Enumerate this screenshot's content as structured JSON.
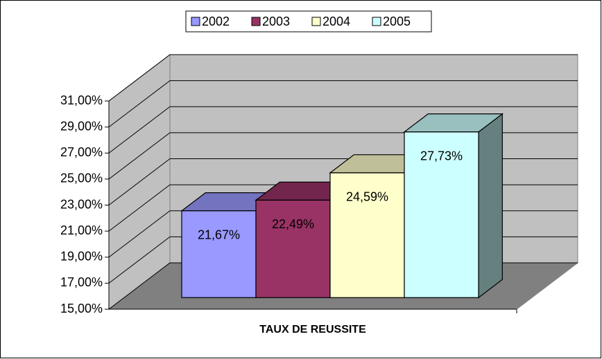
{
  "chart_data": {
    "type": "bar3d",
    "categories": [
      "TAUX DE REUSSITE"
    ],
    "series": [
      {
        "name": "2002",
        "color": "#9999ff",
        "values": [
          21.67
        ],
        "value_labels": [
          "21,67%"
        ]
      },
      {
        "name": "2003",
        "color": "#993366",
        "values": [
          22.49
        ],
        "value_labels": [
          "22,49%"
        ]
      },
      {
        "name": "2004",
        "color": "#ffffcc",
        "values": [
          24.59
        ],
        "value_labels": [
          "24,59%"
        ]
      },
      {
        "name": "2005",
        "color": "#ccffff",
        "values": [
          27.73
        ],
        "value_labels": [
          "27,73%"
        ]
      }
    ],
    "ylim": [
      15,
      31
    ],
    "yticks": [
      {
        "value": 15,
        "label": "15,00%"
      },
      {
        "value": 17,
        "label": "17,00%"
      },
      {
        "value": 19,
        "label": "19,00%"
      },
      {
        "value": 21,
        "label": "21,00%"
      },
      {
        "value": 23,
        "label": "23,00%"
      },
      {
        "value": 25,
        "label": "25,00%"
      },
      {
        "value": 27,
        "label": "27,00%"
      },
      {
        "value": 29,
        "label": "29,00%"
      },
      {
        "value": 31,
        "label": "31,00%"
      }
    ],
    "grid": true,
    "legend": "top"
  }
}
